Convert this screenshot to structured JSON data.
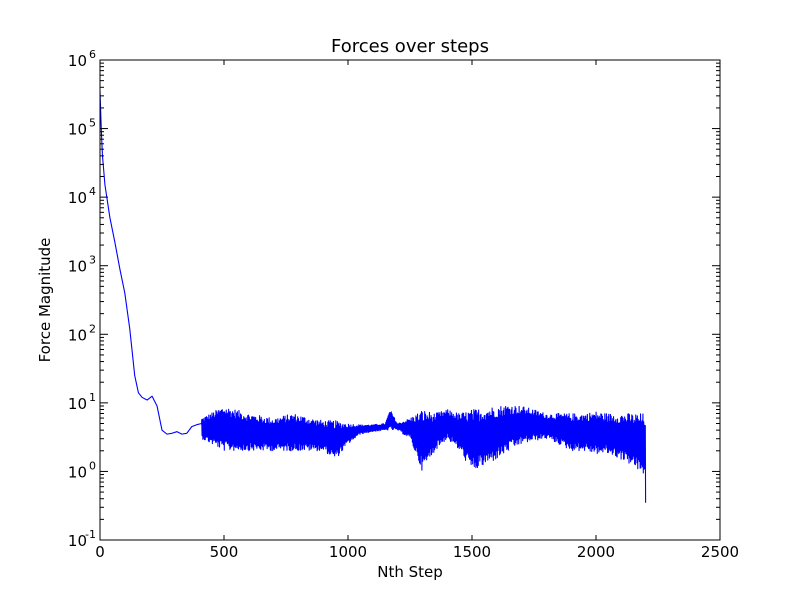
{
  "chart_data": {
    "type": "line",
    "title": "Forces over steps",
    "xlabel": "Nth Step",
    "ylabel": "Force Magnitude",
    "xlim": [
      0,
      2500
    ],
    "ylim": [
      0.1,
      1000000
    ],
    "yscale": "log",
    "x_ticks": [
      {
        "value": 0,
        "label": "0"
      },
      {
        "value": 500,
        "label": "500"
      },
      {
        "value": 1000,
        "label": "1000"
      },
      {
        "value": 1500,
        "label": "1500"
      },
      {
        "value": 2000,
        "label": "2000"
      },
      {
        "value": 2500,
        "label": "2500"
      }
    ],
    "y_ticks": [
      {
        "value": 0.1,
        "base": "10",
        "exp": "-1"
      },
      {
        "value": 1,
        "base": "10",
        "exp": "0"
      },
      {
        "value": 10,
        "base": "10",
        "exp": "1"
      },
      {
        "value": 100,
        "base": "10",
        "exp": "2"
      },
      {
        "value": 1000,
        "base": "10",
        "exp": "3"
      },
      {
        "value": 10000,
        "base": "10",
        "exp": "4"
      },
      {
        "value": 100000,
        "base": "10",
        "exp": "5"
      },
      {
        "value": 1000000,
        "base": "10",
        "exp": "6"
      }
    ],
    "series": [
      {
        "name": "force",
        "color": "#0000ff",
        "decay": {
          "x": [
            0,
            5,
            10,
            20,
            40,
            60,
            80,
            100,
            120,
            140,
            155,
            170,
            190,
            210,
            230,
            250,
            270,
            290,
            310,
            330,
            350,
            370,
            390,
            410
          ],
          "y": [
            350000,
            100000,
            40000,
            15000,
            5000,
            2200,
            900,
            400,
            120,
            25,
            14,
            12,
            11,
            12.5,
            9,
            4,
            3.5,
            3.6,
            3.8,
            3.5,
            3.6,
            4.5,
            4.8,
            5
          ]
        },
        "oscillation": {
          "x_start": 410,
          "x_end": 2200,
          "upper_envelope": {
            "x": [
              410,
              500,
              600,
              700,
              780,
              850,
              900,
              950,
              1000,
              1050,
              1100,
              1150,
              1170,
              1200,
              1250,
              1300,
              1350,
              1400,
              1450,
              1500,
              1550,
              1600,
              1650,
              1700,
              1750,
              1800,
              1850,
              1900,
              1950,
              2000,
              2050,
              2100,
              2150,
              2200
            ],
            "y": [
              6,
              9,
              7,
              6,
              7,
              6,
              5.5,
              5.5,
              5,
              4.8,
              4.8,
              5,
              8,
              5,
              6,
              8,
              7,
              8,
              7,
              8,
              8.5,
              9,
              9.5,
              9,
              8,
              7,
              7,
              7,
              7,
              7.5,
              7,
              7,
              7,
              7
            ]
          },
          "lower_envelope": {
            "x": [
              410,
              500,
              600,
              700,
              780,
              850,
              900,
              950,
              1000,
              1050,
              1100,
              1150,
              1170,
              1200,
              1250,
              1300,
              1350,
              1400,
              1450,
              1500,
              1550,
              1600,
              1650,
              1700,
              1750,
              1800,
              1850,
              1900,
              1950,
              2000,
              2050,
              2100,
              2150,
              2200
            ],
            "y": [
              3,
              2,
              2,
              2,
              2,
              2,
              2,
              1.5,
              2.5,
              3.5,
              3.8,
              4,
              4,
              4,
              3,
              1,
              2,
              3,
              2,
              1,
              1.2,
              1.5,
              2,
              2.5,
              2.8,
              3,
              2.5,
              2,
              2,
              1.8,
              1.8,
              1.5,
              1.2,
              0.8
            ]
          },
          "final_value": 0.35
        }
      }
    ]
  }
}
